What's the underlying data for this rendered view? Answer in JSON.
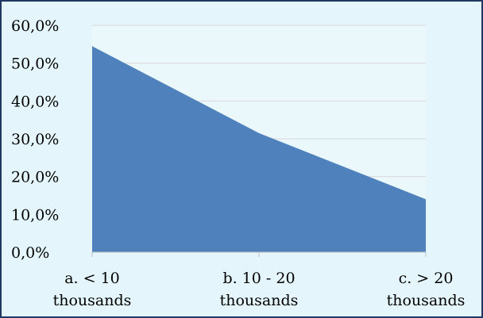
{
  "chart_data": {
    "type": "area",
    "categories": [
      [
        "a. < 10",
        "thousands"
      ],
      [
        "b. 10 - 20",
        "thousands"
      ],
      [
        "c. > 20",
        "thousands"
      ]
    ],
    "values": [
      54.5,
      31.5,
      14.0
    ],
    "y_ticks": [
      "0,0%",
      "10,0%",
      "20,0%",
      "30,0%",
      "40,0%",
      "50,0%",
      "60,0%"
    ],
    "ylim": [
      0,
      60
    ],
    "title": "",
    "xlabel": "",
    "ylabel": "",
    "grid": true,
    "legend": "none",
    "colors": {
      "area": "#4f81bd",
      "plot_background": "#eaf8fc",
      "chart_background": "#e4f6fb",
      "border": "#1f3864",
      "grid": "#d9d9d9",
      "axis": "#bfbfbf"
    }
  }
}
